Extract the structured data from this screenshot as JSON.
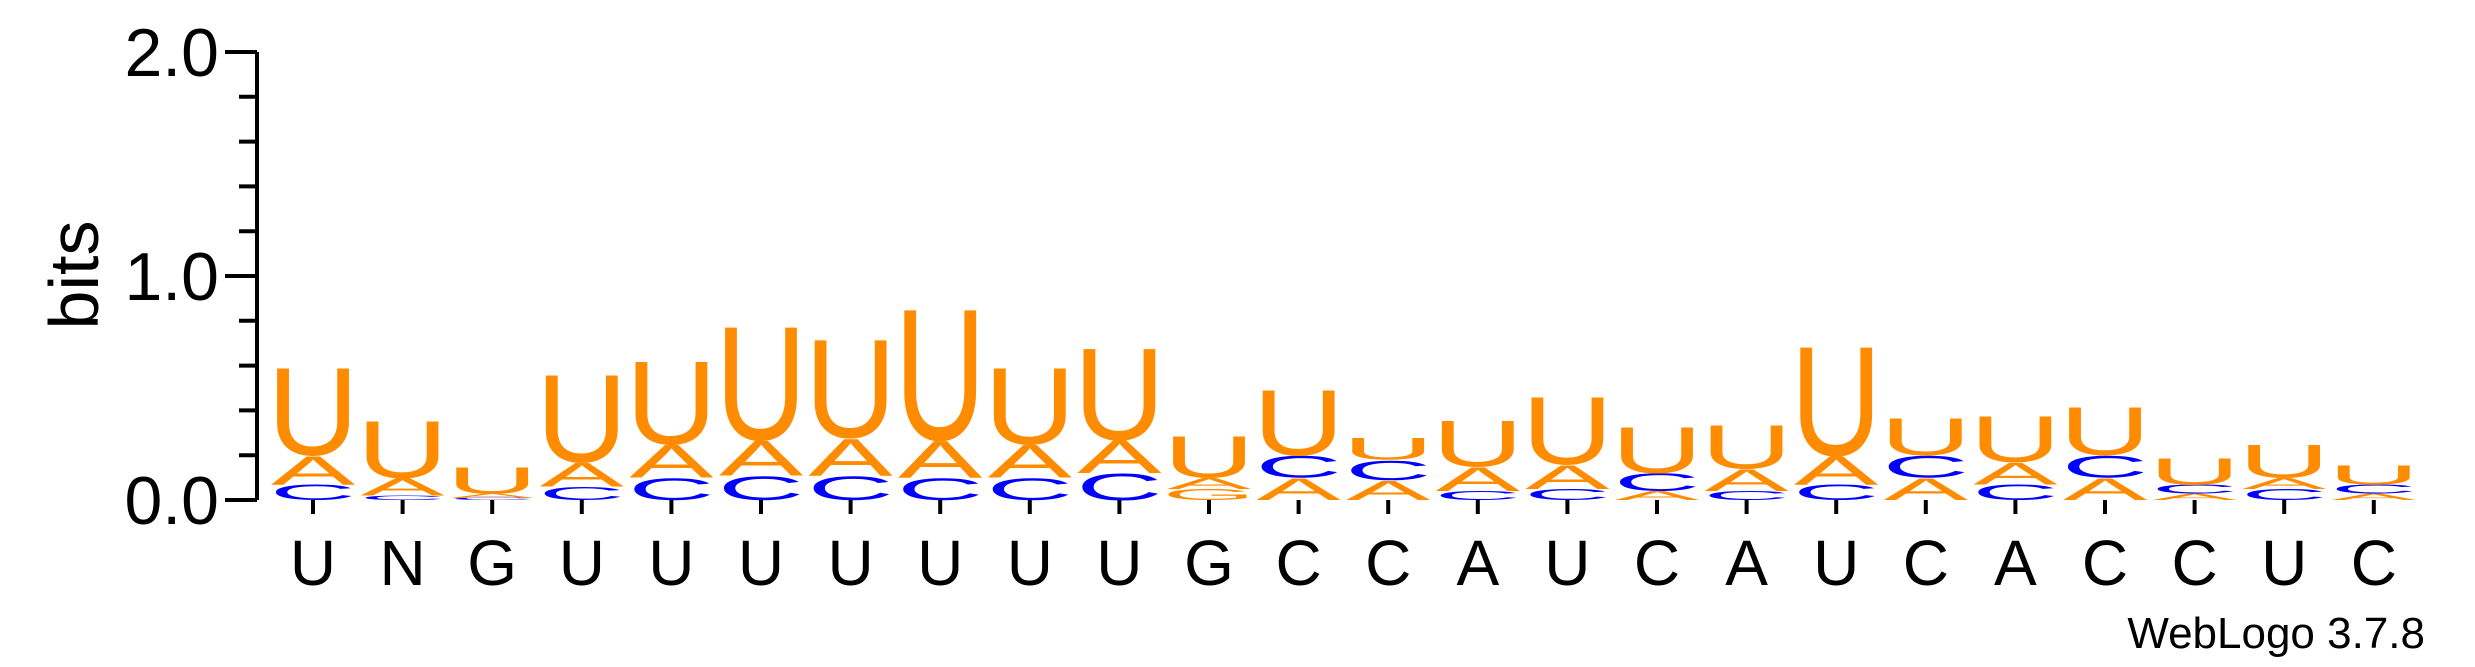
{
  "chart_data": {
    "type": "sequence-logo",
    "ylabel": "bits",
    "ylim": [
      0,
      2.0
    ],
    "y_ticks": [
      "0.0",
      "1.0",
      "2.0"
    ],
    "footer": "WebLogo 3.7.8",
    "colors": {
      "U": "#FF8C00",
      "A": "#FF8C00",
      "C": "#0000FF",
      "G": "#FF8C00",
      "N": "#888888"
    },
    "positions": [
      {
        "label": "U",
        "stack": [
          {
            "letter": "C",
            "bits": 0.07
          },
          {
            "letter": "A",
            "bits": 0.13
          },
          {
            "letter": "U",
            "bits": 0.4
          }
        ]
      },
      {
        "label": "N",
        "stack": [
          {
            "letter": "C",
            "bits": 0.02
          },
          {
            "letter": "A",
            "bits": 0.08
          },
          {
            "letter": "U",
            "bits": 0.26
          }
        ]
      },
      {
        "label": "G",
        "stack": [
          {
            "letter": "C",
            "bits": 0.01
          },
          {
            "letter": "A",
            "bits": 0.02
          },
          {
            "letter": "U",
            "bits": 0.12
          }
        ]
      },
      {
        "label": "U",
        "stack": [
          {
            "letter": "C",
            "bits": 0.06
          },
          {
            "letter": "A",
            "bits": 0.11
          },
          {
            "letter": "U",
            "bits": 0.4
          }
        ]
      },
      {
        "label": "U",
        "stack": [
          {
            "letter": "C",
            "bits": 0.1
          },
          {
            "letter": "A",
            "bits": 0.15
          },
          {
            "letter": "U",
            "bits": 0.38
          }
        ]
      },
      {
        "label": "U",
        "stack": [
          {
            "letter": "C",
            "bits": 0.11
          },
          {
            "letter": "A",
            "bits": 0.16
          },
          {
            "letter": "U",
            "bits": 0.52
          }
        ]
      },
      {
        "label": "U",
        "stack": [
          {
            "letter": "C",
            "bits": 0.11
          },
          {
            "letter": "A",
            "bits": 0.17
          },
          {
            "letter": "U",
            "bits": 0.45
          }
        ]
      },
      {
        "label": "U",
        "stack": [
          {
            "letter": "C",
            "bits": 0.1
          },
          {
            "letter": "A",
            "bits": 0.17
          },
          {
            "letter": "U",
            "bits": 0.6
          }
        ]
      },
      {
        "label": "U",
        "stack": [
          {
            "letter": "C",
            "bits": 0.1
          },
          {
            "letter": "A",
            "bits": 0.15
          },
          {
            "letter": "U",
            "bits": 0.35
          }
        ]
      },
      {
        "label": "U",
        "stack": [
          {
            "letter": "C",
            "bits": 0.12
          },
          {
            "letter": "A",
            "bits": 0.15
          },
          {
            "letter": "U",
            "bits": 0.42
          }
        ]
      },
      {
        "label": "G",
        "stack": [
          {
            "letter": "G",
            "bits": 0.05
          },
          {
            "letter": "A",
            "bits": 0.05
          },
          {
            "letter": "U",
            "bits": 0.19
          }
        ]
      },
      {
        "label": "C",
        "stack": [
          {
            "letter": "A",
            "bits": 0.1
          },
          {
            "letter": "C",
            "bits": 0.1
          },
          {
            "letter": "U",
            "bits": 0.3
          }
        ]
      },
      {
        "label": "C",
        "stack": [
          {
            "letter": "A",
            "bits": 0.09
          },
          {
            "letter": "C",
            "bits": 0.09
          },
          {
            "letter": "U",
            "bits": 0.1
          }
        ]
      },
      {
        "label": "A",
        "stack": [
          {
            "letter": "C",
            "bits": 0.04
          },
          {
            "letter": "A",
            "bits": 0.11
          },
          {
            "letter": "U",
            "bits": 0.21
          }
        ]
      },
      {
        "label": "U",
        "stack": [
          {
            "letter": "C",
            "bits": 0.05
          },
          {
            "letter": "A",
            "bits": 0.11
          },
          {
            "letter": "U",
            "bits": 0.31
          }
        ]
      },
      {
        "label": "C",
        "stack": [
          {
            "letter": "A",
            "bits": 0.04
          },
          {
            "letter": "C",
            "bits": 0.08
          },
          {
            "letter": "U",
            "bits": 0.21
          }
        ]
      },
      {
        "label": "A",
        "stack": [
          {
            "letter": "C",
            "bits": 0.04
          },
          {
            "letter": "A",
            "bits": 0.1
          },
          {
            "letter": "U",
            "bits": 0.2
          }
        ]
      },
      {
        "label": "U",
        "stack": [
          {
            "letter": "C",
            "bits": 0.07
          },
          {
            "letter": "A",
            "bits": 0.13
          },
          {
            "letter": "U",
            "bits": 0.5
          }
        ]
      },
      {
        "label": "C",
        "stack": [
          {
            "letter": "A",
            "bits": 0.1
          },
          {
            "letter": "C",
            "bits": 0.1
          },
          {
            "letter": "U",
            "bits": 0.17
          }
        ]
      },
      {
        "label": "A",
        "stack": [
          {
            "letter": "C",
            "bits": 0.07
          },
          {
            "letter": "A",
            "bits": 0.1
          },
          {
            "letter": "U",
            "bits": 0.21
          }
        ]
      },
      {
        "label": "C",
        "stack": [
          {
            "letter": "A",
            "bits": 0.1
          },
          {
            "letter": "C",
            "bits": 0.1
          },
          {
            "letter": "U",
            "bits": 0.22
          }
        ]
      },
      {
        "label": "C",
        "stack": [
          {
            "letter": "A",
            "bits": 0.03
          },
          {
            "letter": "C",
            "bits": 0.04
          },
          {
            "letter": "U",
            "bits": 0.12
          }
        ]
      },
      {
        "label": "U",
        "stack": [
          {
            "letter": "C",
            "bits": 0.05
          },
          {
            "letter": "A",
            "bits": 0.05
          },
          {
            "letter": "U",
            "bits": 0.15
          }
        ]
      },
      {
        "label": "C",
        "stack": [
          {
            "letter": "A",
            "bits": 0.03
          },
          {
            "letter": "C",
            "bits": 0.04
          },
          {
            "letter": "U",
            "bits": 0.09
          }
        ]
      }
    ]
  }
}
